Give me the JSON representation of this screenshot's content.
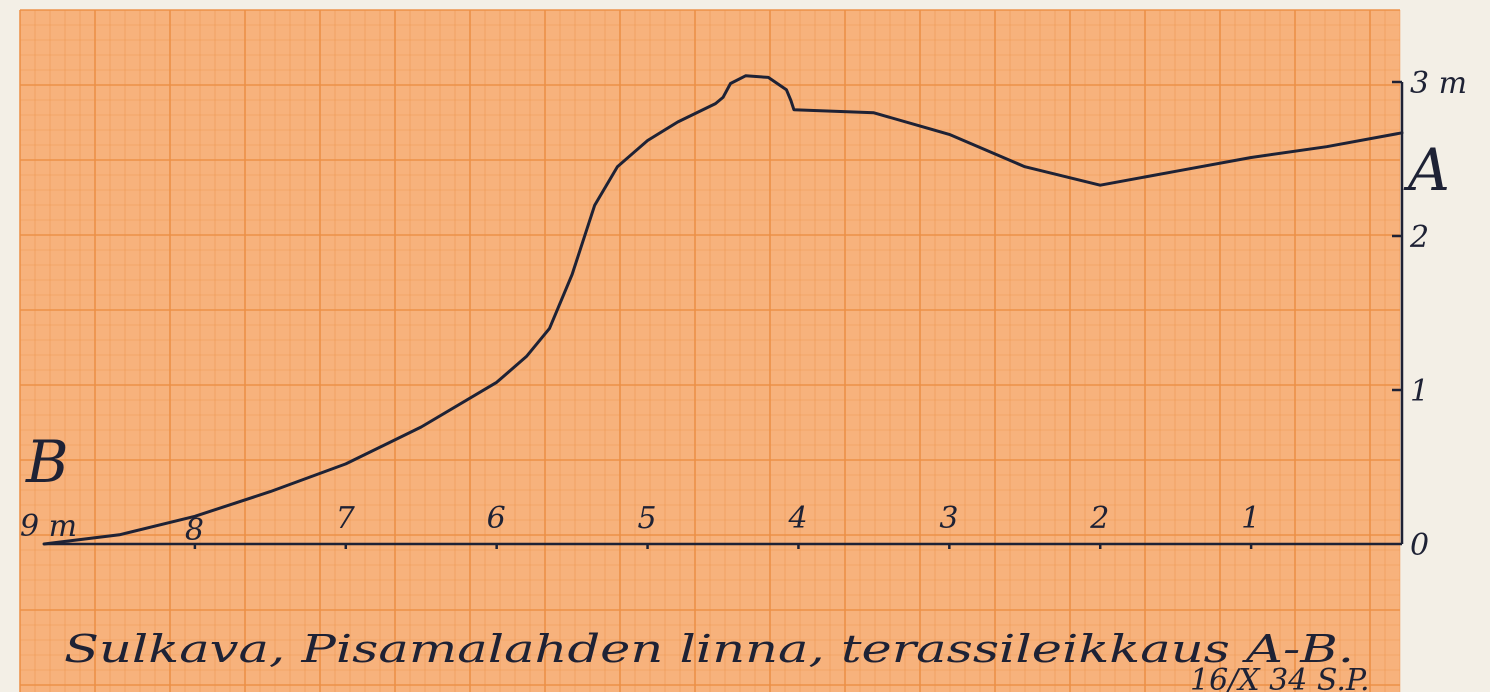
{
  "chart_data": {
    "type": "line",
    "title": "Sulkava, Pisamalahden linna, terassileikkaus A-B.",
    "date_sign": "16/X 34 S.P.",
    "x_unit": "m",
    "y_unit": "m",
    "x_range": [
      9,
      0
    ],
    "y_range": [
      0,
      3
    ],
    "x_ticks": [
      "9 m",
      "8",
      "7",
      "6",
      "5",
      "4",
      "3",
      "2",
      "1"
    ],
    "y_ticks": [
      "0",
      "1",
      "2",
      "3 m"
    ],
    "end_labels": {
      "left": "B",
      "right": "A"
    },
    "series": [
      {
        "points": [
          {
            "x": 9.0,
            "y": 0.0
          },
          {
            "x": 8.5,
            "y": 0.06
          },
          {
            "x": 8.0,
            "y": 0.18
          },
          {
            "x": 7.5,
            "y": 0.34
          },
          {
            "x": 7.0,
            "y": 0.52
          },
          {
            "x": 6.5,
            "y": 0.76
          },
          {
            "x": 6.0,
            "y": 1.05
          },
          {
            "x": 5.8,
            "y": 1.22
          },
          {
            "x": 5.65,
            "y": 1.4
          },
          {
            "x": 5.5,
            "y": 1.75
          },
          {
            "x": 5.35,
            "y": 2.2
          },
          {
            "x": 5.2,
            "y": 2.45
          },
          {
            "x": 5.0,
            "y": 2.62
          },
          {
            "x": 4.8,
            "y": 2.74
          },
          {
            "x": 4.55,
            "y": 2.86
          },
          {
            "x": 4.5,
            "y": 2.9
          },
          {
            "x": 4.45,
            "y": 2.99
          },
          {
            "x": 4.35,
            "y": 3.04
          },
          {
            "x": 4.2,
            "y": 3.03
          },
          {
            "x": 4.08,
            "y": 2.95
          },
          {
            "x": 4.05,
            "y": 2.88
          },
          {
            "x": 4.03,
            "y": 2.82
          },
          {
            "x": 3.5,
            "y": 2.8
          },
          {
            "x": 3.0,
            "y": 2.66
          },
          {
            "x": 2.5,
            "y": 2.45
          },
          {
            "x": 2.0,
            "y": 2.33
          },
          {
            "x": 1.5,
            "y": 2.42
          },
          {
            "x": 1.0,
            "y": 2.51
          },
          {
            "x": 0.5,
            "y": 2.58
          },
          {
            "x": 0.0,
            "y": 2.67
          }
        ]
      }
    ],
    "colors": {
      "paper": "#f7b27c",
      "grid": "#ec8f45",
      "ink": "#1e2235"
    }
  }
}
